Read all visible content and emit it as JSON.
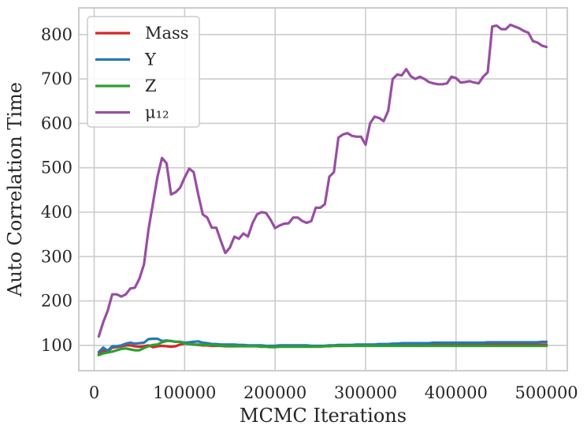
{
  "chart_data": {
    "type": "line",
    "xlabel": "MCMC Iterations",
    "ylabel": "Auto Correlation Time",
    "xlim": [
      -17000,
      523000
    ],
    "ylim": [
      43,
      860
    ],
    "xticks": [
      0,
      100000,
      200000,
      300000,
      400000,
      500000
    ],
    "yticks": [
      100,
      200,
      300,
      400,
      500,
      600,
      700,
      800
    ],
    "grid": true,
    "legend_position": "top-left",
    "x": [
      5000,
      10000,
      15000,
      20000,
      25000,
      30000,
      35000,
      40000,
      45000,
      50000,
      55000,
      60000,
      65000,
      70000,
      75000,
      80000,
      85000,
      90000,
      95000,
      100000,
      105000,
      110000,
      115000,
      120000,
      125000,
      130000,
      135000,
      140000,
      145000,
      150000,
      155000,
      160000,
      165000,
      170000,
      175000,
      180000,
      185000,
      190000,
      195000,
      200000,
      205000,
      210000,
      215000,
      220000,
      225000,
      230000,
      235000,
      240000,
      245000,
      250000,
      255000,
      260000,
      265000,
      270000,
      275000,
      280000,
      285000,
      290000,
      295000,
      300000,
      305000,
      310000,
      315000,
      320000,
      325000,
      330000,
      335000,
      340000,
      345000,
      350000,
      355000,
      360000,
      365000,
      370000,
      375000,
      380000,
      385000,
      390000,
      395000,
      400000,
      405000,
      410000,
      415000,
      420000,
      425000,
      430000,
      435000,
      440000,
      445000,
      450000,
      455000,
      460000,
      465000,
      470000,
      475000,
      480000,
      485000,
      490000,
      495000,
      500000
    ],
    "series": [
      {
        "name": "Mass",
        "color": "#d62728",
        "values": [
          80,
          88,
          87,
          95,
          96,
          98,
          100,
          100,
          98,
          97,
          98,
          100,
          96,
          98,
          99,
          98,
          97,
          98,
          102,
          104,
          104,
          102,
          101,
          100,
          100,
          99,
          99,
          99,
          98,
          98,
          98,
          99,
          99,
          99,
          99,
          99,
          98,
          98,
          98,
          98,
          98,
          98,
          98,
          98,
          98,
          98,
          98,
          98,
          98,
          98,
          99,
          99,
          99,
          99,
          99,
          99,
          100,
          100,
          100,
          100,
          100,
          100,
          100,
          100,
          100,
          101,
          101,
          101,
          101,
          101,
          101,
          101,
          101,
          101,
          101,
          101,
          101,
          101,
          101,
          101,
          101,
          101,
          101,
          101,
          101,
          102,
          102,
          102,
          102,
          102,
          102,
          102,
          102,
          102,
          102,
          102,
          102,
          102,
          102,
          102
        ]
      },
      {
        "name": "Y",
        "color": "#2878b5",
        "values": [
          85,
          95,
          88,
          98,
          98,
          100,
          104,
          106,
          104,
          105,
          106,
          114,
          115,
          115,
          110,
          111,
          110,
          108,
          108,
          106,
          107,
          108,
          109,
          106,
          105,
          103,
          103,
          102,
          102,
          102,
          102,
          101,
          101,
          100,
          100,
          100,
          100,
          99,
          99,
          99,
          100,
          100,
          100,
          100,
          100,
          100,
          100,
          99,
          99,
          99,
          99,
          100,
          100,
          101,
          101,
          101,
          101,
          102,
          102,
          102,
          102,
          102,
          103,
          103,
          103,
          104,
          104,
          105,
          105,
          105,
          105,
          105,
          105,
          105,
          106,
          106,
          106,
          106,
          106,
          106,
          106,
          106,
          106,
          106,
          106,
          106,
          107,
          107,
          107,
          107,
          107,
          107,
          107,
          107,
          107,
          107,
          107,
          107,
          108,
          108
        ]
      },
      {
        "name": "Z",
        "color": "#2ca02c",
        "values": [
          78,
          82,
          84,
          86,
          89,
          92,
          93,
          91,
          89,
          89,
          94,
          98,
          101,
          102,
          107,
          110,
          110,
          108,
          108,
          104,
          103,
          102,
          102,
          102,
          101,
          101,
          100,
          99,
          99,
          98,
          98,
          98,
          98,
          98,
          98,
          98,
          97,
          97,
          96,
          96,
          97,
          97,
          97,
          97,
          97,
          97,
          97,
          97,
          97,
          97,
          98,
          98,
          99,
          99,
          99,
          99,
          99,
          99,
          99,
          99,
          99,
          99,
          99,
          99,
          99,
          99,
          99,
          99,
          99,
          99,
          99,
          99,
          99,
          99,
          99,
          99,
          99,
          99,
          99,
          99,
          99,
          99,
          99,
          99,
          99,
          99,
          99,
          99,
          99,
          99,
          99,
          99,
          99,
          99,
          99,
          99,
          99,
          99,
          99,
          99
        ]
      },
      {
        "name": "μ₁₂",
        "color": "#984ea3",
        "values": [
          120,
          152,
          178,
          215,
          215,
          210,
          215,
          228,
          230,
          250,
          282,
          360,
          420,
          480,
          522,
          510,
          440,
          445,
          455,
          478,
          498,
          490,
          440,
          395,
          388,
          365,
          365,
          335,
          308,
          320,
          345,
          340,
          352,
          345,
          375,
          395,
          400,
          398,
          383,
          364,
          370,
          374,
          375,
          388,
          388,
          380,
          376,
          380,
          410,
          410,
          418,
          480,
          490,
          568,
          575,
          578,
          572,
          570,
          570,
          552,
          600,
          615,
          612,
          605,
          628,
          700,
          710,
          708,
          722,
          706,
          700,
          705,
          700,
          693,
          690,
          688,
          688,
          690,
          705,
          702,
          692,
          693,
          695,
          692,
          690,
          705,
          715,
          818,
          820,
          812,
          812,
          822,
          818,
          814,
          808,
          804,
          785,
          782,
          775,
          772
        ]
      }
    ]
  }
}
